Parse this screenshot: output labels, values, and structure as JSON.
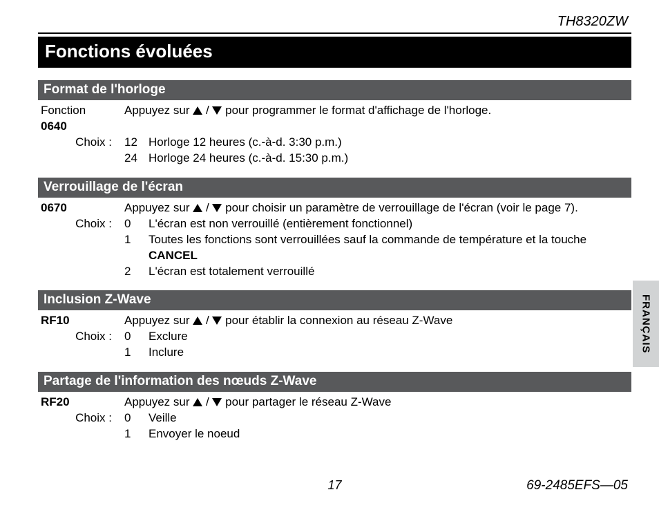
{
  "header": {
    "model": "TH8320ZW"
  },
  "title": "Fonctions évoluées",
  "sideTab": "FRANÇAIS",
  "sections": [
    {
      "heading": "Format de l'horloge",
      "fnLabel": "Fonction",
      "fnCode": "0640",
      "instructionPre": "Appuyez sur ",
      "instructionPost": " pour programmer le format d'affichage de l'horloge.",
      "choixLabel": "Choix :",
      "choices": [
        {
          "num": "12",
          "text": "Horloge 12 heures (c.-à-d. 3:30 p.m.)"
        },
        {
          "num": "24",
          "text": "Horloge 24 heures (c.-à-d. 15:30 p.m.)"
        }
      ]
    },
    {
      "heading": "Verrouillage de l'écran",
      "fnLabel": "",
      "fnCode": "0670",
      "instructionPre": "Appuyez sur ",
      "instructionPost": " pour choisir un paramètre de verrouillage de l'écran (voir le page 7).",
      "choixLabel": "Choix :",
      "choices": [
        {
          "num": "0",
          "text": "L'écran est non verrouillé (entièrement fonctionnel)"
        },
        {
          "num": "1",
          "text": "Toutes les fonctions sont verrouillées sauf la commande de température et la touche ",
          "boldSuffix": "CANCEL"
        },
        {
          "num": "2",
          "text": "L'écran est totalement verrouillé"
        }
      ]
    },
    {
      "heading": "Inclusion Z-Wave",
      "fnLabel": "",
      "fnCode": "RF10",
      "instructionPre": "Appuyez sur ",
      "instructionPost": " pour établir la connexion au réseau Z-Wave",
      "choixLabel": "Choix :",
      "choices": [
        {
          "num": "0",
          "text": "Exclure"
        },
        {
          "num": "1",
          "text": "Inclure"
        }
      ]
    },
    {
      "heading": "Partage de l'information des nœuds Z-Wave",
      "fnLabel": "",
      "fnCode": "RF20",
      "instructionPre": "Appuyez sur ",
      "instructionPost": " pour partager le réseau Z-Wave",
      "choixLabel": "Choix :",
      "choices": [
        {
          "num": "0",
          "text": "Veille"
        },
        {
          "num": "1",
          "text": "Envoyer le noeud"
        }
      ]
    }
  ],
  "footer": {
    "pageNumber": "17",
    "docCode": "69-2485EFS—05"
  },
  "colors": {
    "titleBarBg": "#000000",
    "sectionBarBg": "#58595b",
    "sideTabBg": "#d1d3d4",
    "text": "#000000",
    "barText": "#ffffff"
  },
  "typography": {
    "titleFontSize": 26,
    "sectionHeadingFontSize": 19,
    "bodyFontSize": 17,
    "modelFontSize": 20
  }
}
